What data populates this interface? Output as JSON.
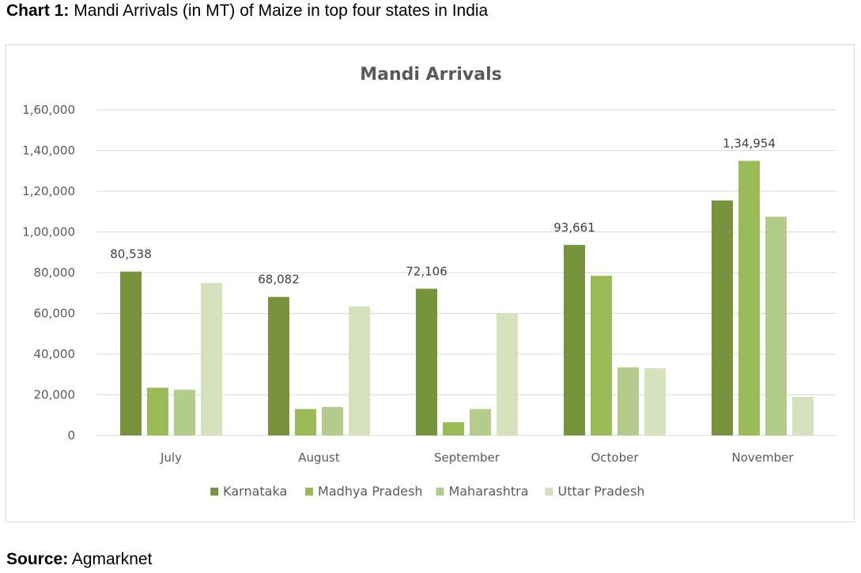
{
  "caption": {
    "prefix": "Chart 1:",
    "text": "Mandi Arrivals (in MT) of Maize in top four states in India"
  },
  "source": {
    "prefix": "Source:",
    "text": "Agmarknet"
  },
  "chart_data": {
    "type": "bar",
    "title": "Mandi Arrivals",
    "xlabel": "",
    "ylabel": "",
    "categories": [
      "July",
      "August",
      "September",
      "October",
      "November"
    ],
    "series": [
      {
        "name": "Karnataka",
        "color": "#77933c",
        "values": [
          80538,
          68082,
          72106,
          93661,
          115500
        ]
      },
      {
        "name": "Madhya Pradesh",
        "color": "#9bbb59",
        "values": [
          23500,
          13000,
          6500,
          78500,
          134954
        ]
      },
      {
        "name": "Maharashtra",
        "color": "#b3cb8b",
        "values": [
          22500,
          14000,
          13000,
          33500,
          107500
        ]
      },
      {
        "name": "Uttar Pradesh",
        "color": "#d5e2bd",
        "values": [
          75000,
          63500,
          60000,
          33000,
          19000
        ]
      }
    ],
    "data_labels": [
      {
        "category": "July",
        "series": "Karnataka",
        "text": "80,538"
      },
      {
        "category": "August",
        "series": "Karnataka",
        "text": "68,082"
      },
      {
        "category": "September",
        "series": "Karnataka",
        "text": "72,106"
      },
      {
        "category": "October",
        "series": "Karnataka",
        "text": "93,661"
      },
      {
        "category": "November",
        "series": "Madhya Pradesh",
        "text": "1,34,954"
      }
    ],
    "ylim": [
      0,
      160000
    ],
    "yticks": [
      0,
      20000,
      40000,
      60000,
      80000,
      100000,
      120000,
      140000,
      160000
    ],
    "ytick_labels": [
      "0",
      "20,000",
      "40,000",
      "60,000",
      "80,000",
      "1,00,000",
      "1,20,000",
      "1,40,000",
      "1,60,000"
    ],
    "grid": true,
    "legend": "bottom"
  }
}
